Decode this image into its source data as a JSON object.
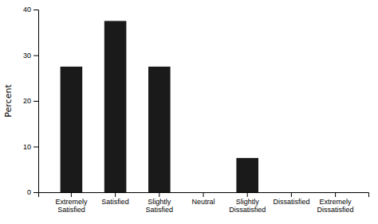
{
  "chart_data": {
    "type": "bar",
    "categories": [
      "Extremely\nSatisfied",
      "Satisfied",
      "Slightly\nSatisfied",
      "Neutral",
      "Slightly\nDissatisfied",
      "Dissatisfied",
      "Extremely\nDissatisfied"
    ],
    "values": [
      27.5,
      37.5,
      27.5,
      0,
      7.5,
      0,
      0
    ],
    "color": "#1a1a1a",
    "ylabel": "Percent",
    "ylim": [
      0,
      40
    ],
    "yticks": [
      0,
      10,
      20,
      30,
      40
    ],
    "grid": false
  }
}
